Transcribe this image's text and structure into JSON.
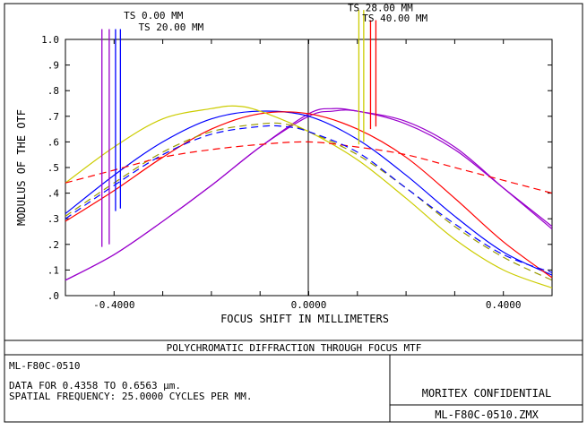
{
  "footer": {
    "title": "POLYCHROMATIC DIFFRACTION THROUGH FOCUS MTF",
    "lens": "ML-F80C-0510",
    "wavelength_line": "DATA FOR 0.4358 TO 0.6563 µm.",
    "frequency_line": "SPATIAL FREQUENCY: 25.0000 CYCLES PER MM.",
    "confidential": "MORITEX CONFIDENTIAL",
    "file": "ML-F80C-0510.ZMX"
  },
  "chart_data": {
    "type": "line",
    "title": "",
    "xlabel": "FOCUS SHIFT IN MILLIMETERS",
    "ylabel": "MODULUS OF THE OTF",
    "xlim": [
      -0.5,
      0.5
    ],
    "ylim": [
      0,
      1
    ],
    "x_ticks": [
      {
        "v": -0.4,
        "label": "-0.4000"
      },
      {
        "v": 0.0,
        "label": "0.0000"
      },
      {
        "v": 0.4,
        "label": "0.4000"
      }
    ],
    "y_ticks": [
      {
        "v": 0.0,
        "label": ".0"
      },
      {
        "v": 0.1,
        "label": ".1"
      },
      {
        "v": 0.2,
        "label": ".2"
      },
      {
        "v": 0.3,
        "label": ".3"
      },
      {
        "v": 0.4,
        "label": ".4"
      },
      {
        "v": 0.5,
        "label": ".5"
      },
      {
        "v": 0.6,
        "label": ".6"
      },
      {
        "v": 0.7,
        "label": ".7"
      },
      {
        "v": 0.8,
        "label": ".8"
      },
      {
        "v": 0.9,
        "label": ".9"
      },
      {
        "v": 1.0,
        "label": "1.0"
      }
    ],
    "grid": false,
    "field_labels": [
      {
        "text": "TS 0.00 MM",
        "x": -0.38,
        "y": 1.08
      },
      {
        "text": "TS 20.00 MM",
        "x": -0.35,
        "y": 1.035
      },
      {
        "text": "TS 28.00 MM",
        "x": 0.08,
        "y": 1.11
      },
      {
        "text": "TS 40.00 MM",
        "x": 0.11,
        "y": 1.07
      }
    ],
    "field_markers": [
      {
        "color": "#9900cc",
        "x": -0.425,
        "y_top": 1.04,
        "y_bottom": 0.19
      },
      {
        "color": "#9900cc",
        "x": -0.41,
        "y_top": 1.04,
        "y_bottom": 0.2
      },
      {
        "color": "#0000ff",
        "x": -0.397,
        "y_top": 1.04,
        "y_bottom": 0.33
      },
      {
        "color": "#0000ff",
        "x": -0.387,
        "y_top": 1.04,
        "y_bottom": 0.34
      },
      {
        "color": "#cccc00",
        "x": 0.103,
        "y_top": 1.115,
        "y_bottom": 0.59
      },
      {
        "color": "#cccc00",
        "x": 0.113,
        "y_top": 1.115,
        "y_bottom": 0.6
      },
      {
        "color": "#ff0000",
        "x": 0.127,
        "y_top": 1.075,
        "y_bottom": 0.65
      },
      {
        "color": "#ff0000",
        "x": 0.138,
        "y_top": 1.075,
        "y_bottom": 0.66
      }
    ],
    "series": [
      {
        "color": "#9900cc",
        "dash": false,
        "x": [
          -0.5,
          -0.4,
          -0.3,
          -0.2,
          -0.1,
          0.0,
          0.05,
          0.1,
          0.2,
          0.3,
          0.4,
          0.5
        ],
        "y": [
          0.06,
          0.16,
          0.29,
          0.43,
          0.58,
          0.71,
          0.73,
          0.72,
          0.68,
          0.58,
          0.42,
          0.26
        ]
      },
      {
        "color": "#9900cc",
        "dash": false,
        "x": [
          -0.5,
          -0.4,
          -0.3,
          -0.2,
          -0.1,
          0.0,
          0.05,
          0.1,
          0.2,
          0.3,
          0.4,
          0.5
        ],
        "y": [
          0.06,
          0.16,
          0.29,
          0.43,
          0.58,
          0.7,
          0.72,
          0.72,
          0.67,
          0.57,
          0.42,
          0.27
        ]
      },
      {
        "color": "#0000ff",
        "dash": false,
        "x": [
          -0.5,
          -0.4,
          -0.3,
          -0.2,
          -0.1,
          0.0,
          0.1,
          0.2,
          0.3,
          0.4,
          0.5
        ],
        "y": [
          0.32,
          0.47,
          0.6,
          0.69,
          0.72,
          0.7,
          0.61,
          0.47,
          0.31,
          0.17,
          0.08
        ]
      },
      {
        "color": "#ff0000",
        "dash": false,
        "x": [
          -0.5,
          -0.4,
          -0.3,
          -0.2,
          -0.1,
          0.0,
          0.1,
          0.2,
          0.3,
          0.4,
          0.5
        ],
        "y": [
          0.29,
          0.41,
          0.54,
          0.65,
          0.71,
          0.71,
          0.65,
          0.54,
          0.38,
          0.21,
          0.07
        ]
      },
      {
        "color": "#cccc00",
        "dash": false,
        "x": [
          -0.5,
          -0.4,
          -0.3,
          -0.2,
          -0.15,
          -0.1,
          0.0,
          0.1,
          0.2,
          0.3,
          0.4,
          0.5
        ],
        "y": [
          0.44,
          0.58,
          0.69,
          0.73,
          0.74,
          0.72,
          0.64,
          0.53,
          0.38,
          0.22,
          0.1,
          0.03
        ]
      },
      {
        "color": "#999900",
        "dash": true,
        "x": [
          -0.5,
          -0.4,
          -0.3,
          -0.2,
          -0.1,
          -0.05,
          0.0,
          0.1,
          0.2,
          0.3,
          0.4,
          0.5
        ],
        "y": [
          0.31,
          0.44,
          0.56,
          0.64,
          0.67,
          0.67,
          0.64,
          0.55,
          0.42,
          0.27,
          0.15,
          0.06
        ]
      },
      {
        "color": "#ff0000",
        "dash": true,
        "x": [
          -0.5,
          -0.4,
          -0.3,
          -0.2,
          -0.1,
          0.0,
          0.1,
          0.2,
          0.3,
          0.4,
          0.5
        ],
        "y": [
          0.44,
          0.49,
          0.54,
          0.57,
          0.59,
          0.6,
          0.58,
          0.55,
          0.5,
          0.45,
          0.4
        ]
      },
      {
        "color": "#0000ff",
        "dash": true,
        "x": [
          -0.5,
          -0.4,
          -0.3,
          -0.2,
          -0.1,
          -0.05,
          0.0,
          0.1,
          0.2,
          0.3,
          0.4,
          0.5
        ],
        "y": [
          0.3,
          0.43,
          0.55,
          0.63,
          0.66,
          0.66,
          0.64,
          0.56,
          0.42,
          0.28,
          0.16,
          0.09
        ]
      }
    ]
  }
}
